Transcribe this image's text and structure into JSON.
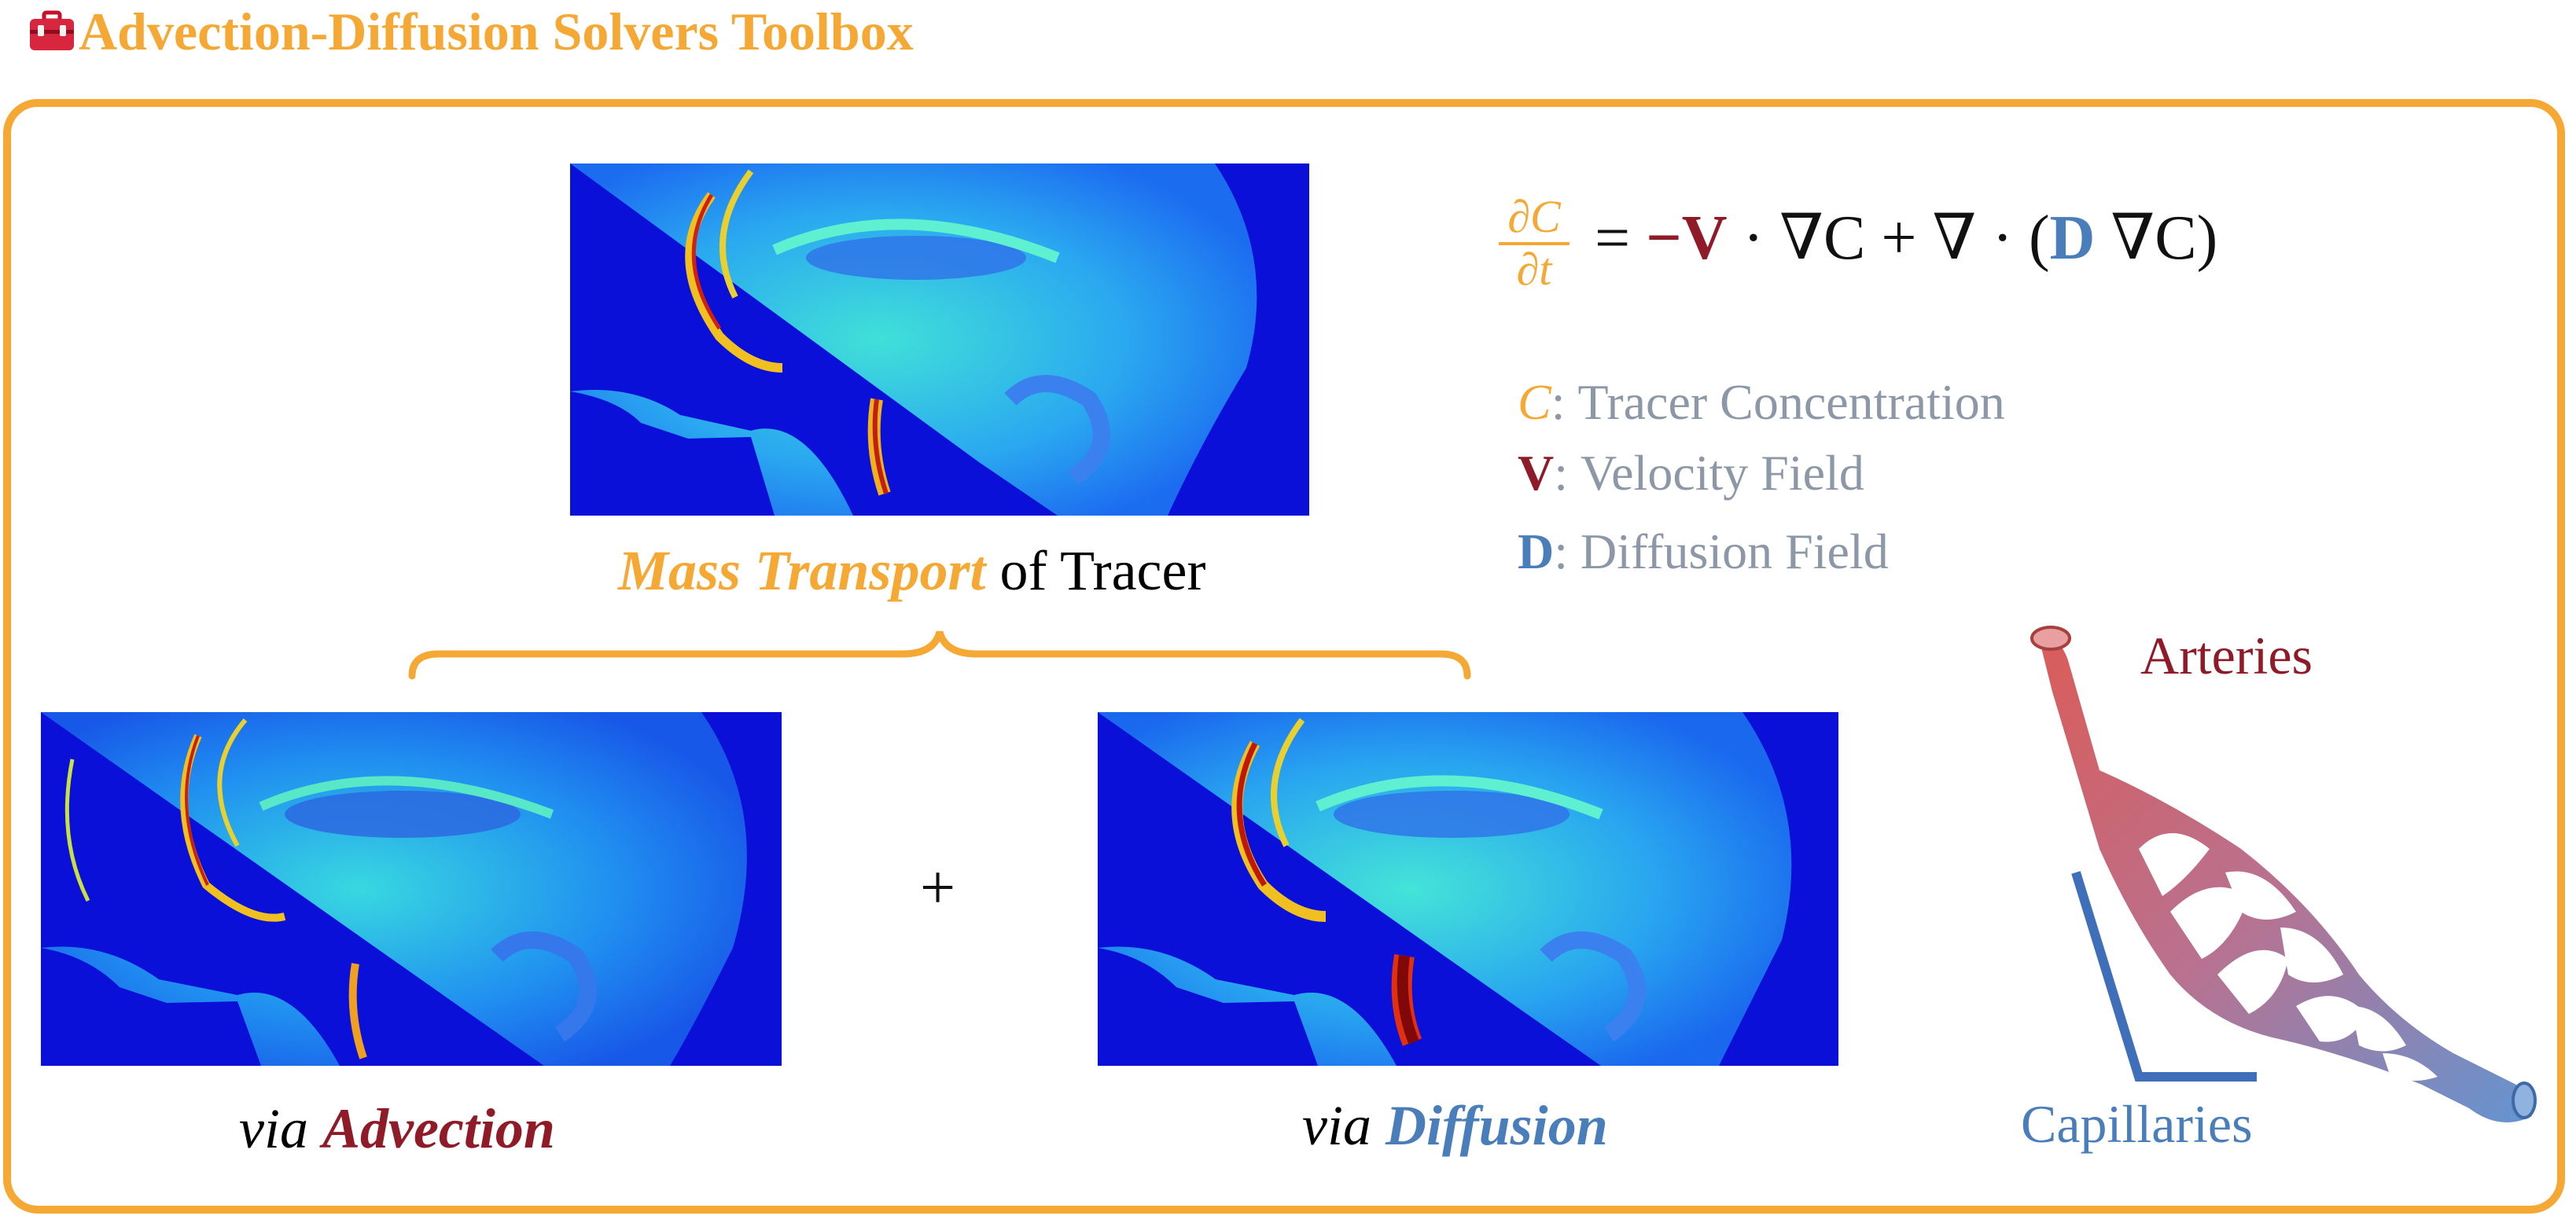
{
  "header": {
    "icon": "toolbox-icon",
    "title": "Advection-Diffusion Solvers Toolbox"
  },
  "colors": {
    "accent_orange": "#f5a833",
    "advection_red": "#8e1b27",
    "diffusion_blue": "#4a7ebb",
    "legend_grey": "#8c98a8",
    "scan_background": "#0a10d8"
  },
  "top_panel": {
    "caption_highlight": "Mass Transport",
    "caption_rest": " of Tracer"
  },
  "left_panel": {
    "caption_prefix": "via ",
    "caption_highlight": "Advection"
  },
  "right_panel": {
    "caption_prefix": "via ",
    "caption_highlight": "Diffusion"
  },
  "operator": "+",
  "equation": {
    "lhs_numerator": "∂C",
    "lhs_denominator": "∂t",
    "equals": "=",
    "minus": "−",
    "velocity": "V",
    "middle": " · ∇C + ∇ · (",
    "diffusion": "D",
    "end": " ∇C)"
  },
  "legend": [
    {
      "symbol": "C",
      "separator": ":",
      "text": "Tracer Concentration"
    },
    {
      "symbol": "V",
      "separator": ":",
      "text": "Velocity Field"
    },
    {
      "symbol": "D",
      "separator": ":",
      "text": "Diffusion Field"
    }
  ],
  "vessel_illustration": {
    "label_top": "Arteries",
    "label_bottom": "Capillaries"
  }
}
